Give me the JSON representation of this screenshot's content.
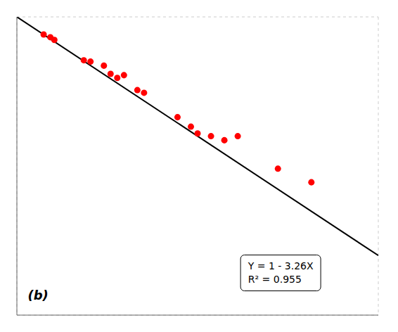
{
  "chart_data": {
    "type": "scatter",
    "series": [
      {
        "type": "line",
        "color": "#000000",
        "x": [
          0.0,
          0.27
        ],
        "values": [
          1.0,
          0.1198
        ]
      },
      {
        "type": "scatter",
        "color": "#FF0000",
        "x": [
          0.02,
          0.025,
          0.028,
          0.05,
          0.055,
          0.065,
          0.07,
          0.075,
          0.08,
          0.09,
          0.095,
          0.12,
          0.13,
          0.135,
          0.145,
          0.155,
          0.165,
          0.195,
          0.22
        ],
        "values": [
          0.935,
          0.925,
          0.915,
          0.84,
          0.835,
          0.82,
          0.79,
          0.775,
          0.785,
          0.73,
          0.72,
          0.63,
          0.595,
          0.57,
          0.56,
          0.545,
          0.56,
          0.44,
          0.39
        ]
      }
    ],
    "xlim": [
      0.0,
      0.27
    ],
    "ylim": [
      -0.1,
      1.0
    ],
    "xticks": [
      0.0,
      0.0675,
      0.135,
      0.2025,
      0.27
    ],
    "yticks": [
      -0.1,
      0.12,
      0.34,
      0.56,
      0.78,
      1.0
    ],
    "grid": true,
    "tick_labels": false,
    "annotations": [
      "(b)",
      "Y = 1 - 3.26X",
      "R² = 0.955"
    ]
  }
}
